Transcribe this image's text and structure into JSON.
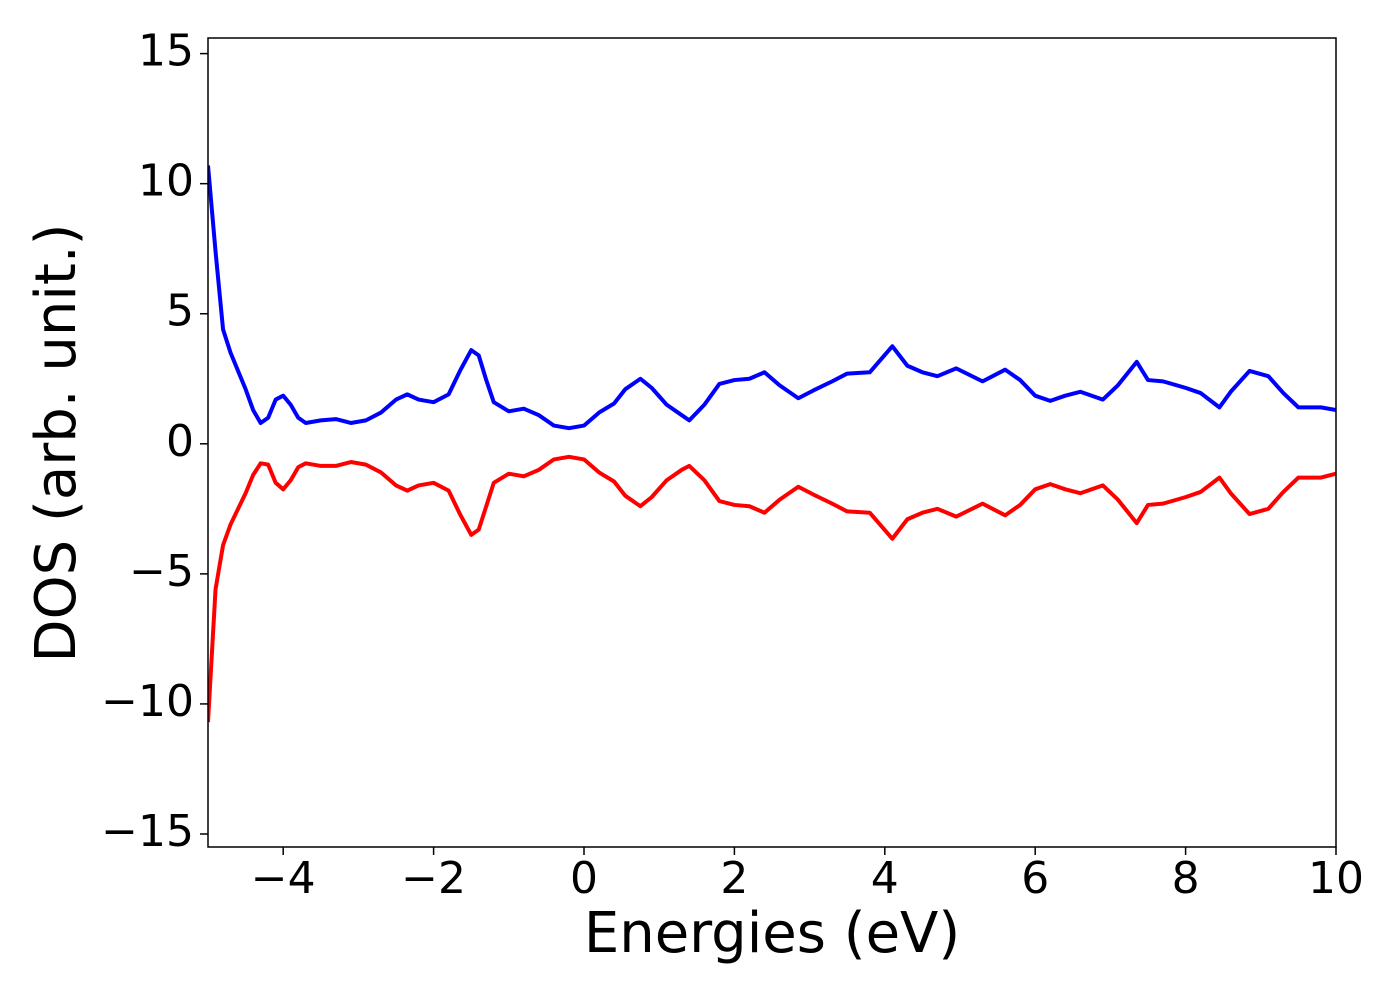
{
  "chart_data": {
    "type": "line",
    "xlabel": "Energies (eV)",
    "ylabel": "DOS (arb. unit.)",
    "x": [
      -5,
      -4.9,
      -4.8,
      -4.7,
      -4.5,
      -4.4,
      -4.3,
      -4.2,
      -4.1,
      -4.0,
      -3.9,
      -3.8,
      -3.7,
      -3.5,
      -3.3,
      -3.1,
      -2.9,
      -2.7,
      -2.5,
      -2.35,
      -2.2,
      -2.0,
      -1.8,
      -1.65,
      -1.5,
      -1.4,
      -1.3,
      -1.2,
      -1.0,
      -0.8,
      -0.6,
      -0.4,
      -0.2,
      0.0,
      0.2,
      0.4,
      0.55,
      0.75,
      0.9,
      1.1,
      1.3,
      1.4,
      1.6,
      1.8,
      2.0,
      2.2,
      2.4,
      2.6,
      2.85,
      3.05,
      3.3,
      3.5,
      3.8,
      4.1,
      4.3,
      4.5,
      4.7,
      4.95,
      5.3,
      5.6,
      5.8,
      6.0,
      6.2,
      6.4,
      6.6,
      6.9,
      7.1,
      7.35,
      7.5,
      7.7,
      8.0,
      8.2,
      8.45,
      8.6,
      8.85,
      9.1,
      9.3,
      9.5,
      9.8,
      10.0
    ],
    "series": [
      {
        "color": "#0000ff",
        "values": [
          10.7,
          7.4,
          4.4,
          3.5,
          2.1,
          1.3,
          0.8,
          1.0,
          1.7,
          1.85,
          1.5,
          1.0,
          0.8,
          0.9,
          0.95,
          0.8,
          0.9,
          1.2,
          1.7,
          1.9,
          1.7,
          1.6,
          1.9,
          2.8,
          3.6,
          3.4,
          2.45,
          1.6,
          1.25,
          1.35,
          1.1,
          0.7,
          0.6,
          0.7,
          1.2,
          1.55,
          2.1,
          2.5,
          2.15,
          1.5,
          1.1,
          0.9,
          1.5,
          2.3,
          2.45,
          2.5,
          2.75,
          2.25,
          1.75,
          2.05,
          2.4,
          2.7,
          2.75,
          3.75,
          3.0,
          2.75,
          2.6,
          2.9,
          2.4,
          2.85,
          2.45,
          1.85,
          1.65,
          1.85,
          2.0,
          1.7,
          2.25,
          3.15,
          2.45,
          2.4,
          2.15,
          1.95,
          1.4,
          2.0,
          2.8,
          2.6,
          1.95,
          1.4,
          1.4,
          1.3
        ]
      },
      {
        "color": "#ff0000",
        "values": [
          -10.7,
          -5.6,
          -3.9,
          -3.1,
          -1.9,
          -1.2,
          -0.75,
          -0.8,
          -1.5,
          -1.75,
          -1.4,
          -0.9,
          -0.75,
          -0.85,
          -0.85,
          -0.7,
          -0.8,
          -1.1,
          -1.6,
          -1.8,
          -1.6,
          -1.5,
          -1.8,
          -2.7,
          -3.5,
          -3.3,
          -2.4,
          -1.5,
          -1.15,
          -1.25,
          -1.0,
          -0.6,
          -0.5,
          -0.6,
          -1.1,
          -1.45,
          -2.0,
          -2.4,
          -2.05,
          -1.4,
          -1.0,
          -0.85,
          -1.4,
          -2.2,
          -2.35,
          -2.4,
          -2.65,
          -2.15,
          -1.65,
          -1.95,
          -2.3,
          -2.6,
          -2.65,
          -3.65,
          -2.9,
          -2.65,
          -2.5,
          -2.8,
          -2.3,
          -2.75,
          -2.35,
          -1.75,
          -1.55,
          -1.75,
          -1.9,
          -1.6,
          -2.15,
          -3.05,
          -2.35,
          -2.3,
          -2.05,
          -1.85,
          -1.3,
          -1.9,
          -2.7,
          -2.5,
          -1.85,
          -1.3,
          -1.3,
          -1.15
        ]
      }
    ],
    "xlim": [
      -5,
      10
    ],
    "xticks": [
      {
        "value": -4,
        "label": "−4"
      },
      {
        "value": -2,
        "label": "−2"
      },
      0,
      2,
      4,
      6,
      8,
      10
    ],
    "ylim": [
      -15.5,
      15.6
    ],
    "yticks": [
      {
        "value": -15,
        "label": "−15"
      },
      {
        "value": -10,
        "label": "−10"
      },
      {
        "value": -5,
        "label": "−5"
      },
      0,
      5,
      10,
      15
    ]
  }
}
